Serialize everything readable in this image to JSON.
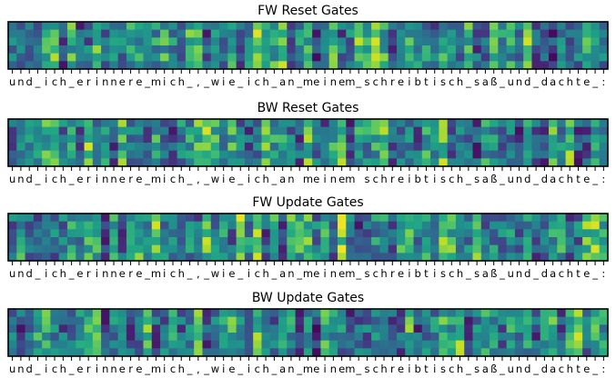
{
  "chart_data": [
    {
      "type": "heatmap",
      "title": "FW Reset Gates",
      "x_tick_labels": [
        "u",
        "n",
        "d",
        "_",
        "i",
        "c",
        "h",
        "_",
        "e",
        "r",
        "i",
        "n",
        "n",
        "e",
        "r",
        "e",
        "_",
        "m",
        "i",
        "c",
        "h",
        "_",
        ",",
        "_",
        "w",
        "i",
        "e",
        "_",
        "i",
        "c",
        "h",
        "_",
        "a",
        "n",
        "_",
        "m",
        "e",
        "i",
        "n",
        "e",
        "m",
        "_",
        "s",
        "c",
        "h",
        "r",
        "e",
        "i",
        "b",
        "t",
        "i",
        "s",
        "c",
        "h",
        "_",
        "s",
        "a",
        "ß",
        "_",
        "u",
        "n",
        "d",
        "_",
        "d",
        "a",
        "c",
        "h",
        "t",
        "e",
        "_",
        ":"
      ],
      "n_rows": 6,
      "colormap": "viridis",
      "value_range": [
        0,
        1
      ],
      "seed": 11
    },
    {
      "type": "heatmap",
      "title": "BW Reset Gates",
      "x_tick_labels": [
        "u",
        "n",
        "d",
        "_",
        "i",
        "c",
        "h",
        "_",
        "e",
        "r",
        "i",
        "n",
        "n",
        "e",
        "r",
        "e",
        "_",
        "m",
        "i",
        "c",
        "h",
        "_",
        ",",
        "_",
        "w",
        "i",
        "e",
        "_",
        "i",
        "c",
        "h",
        "_",
        "a",
        "n",
        " ",
        "m",
        "e",
        "i",
        "n",
        "e",
        "m",
        " ",
        "s",
        "c",
        "h",
        "r",
        "e",
        "i",
        "b",
        "t",
        "i",
        "s",
        "c",
        "h",
        "_",
        "s",
        "a",
        "ß",
        "_",
        "u",
        "n",
        "d",
        "_",
        "d",
        "a",
        "c",
        "h",
        "t",
        "e",
        "_",
        ":"
      ],
      "n_rows": 6,
      "colormap": "viridis",
      "value_range": [
        0,
        1
      ],
      "seed": 23
    },
    {
      "type": "heatmap",
      "title": "FW Update Gates",
      "x_tick_labels": [
        "u",
        "n",
        "d",
        "_",
        "i",
        "c",
        "h",
        "_",
        "e",
        "r",
        "i",
        "n",
        "n",
        "e",
        "r",
        "e",
        "_",
        "m",
        "i",
        "c",
        "h",
        "_",
        ",",
        "_",
        "w",
        "i",
        "e",
        "_",
        "i",
        "c",
        "h",
        "_",
        "a",
        "n",
        "_",
        "m",
        "e",
        "i",
        "n",
        "e",
        "m",
        "_",
        "s",
        "c",
        "h",
        "r",
        "e",
        "i",
        "b",
        "t",
        "i",
        "s",
        "c",
        "h",
        "_",
        "s",
        "a",
        "ß",
        "_",
        "u",
        "n",
        "d",
        "_",
        "d",
        "a",
        "c",
        "h",
        "t",
        "e",
        "_",
        ":"
      ],
      "n_rows": 6,
      "colormap": "viridis",
      "value_range": [
        0,
        1
      ],
      "seed": 37
    },
    {
      "type": "heatmap",
      "title": "BW Update Gates",
      "x_tick_labels": [
        "u",
        "n",
        "d",
        "_",
        "i",
        "c",
        "h",
        "_",
        "e",
        "r",
        "i",
        "n",
        "n",
        "e",
        "r",
        "e",
        "_",
        "m",
        "i",
        "c",
        "h",
        "_",
        ",",
        "_",
        "w",
        "i",
        "e",
        "_",
        "i",
        "c",
        "h",
        "_",
        "a",
        "n",
        "_",
        "m",
        "e",
        "i",
        "n",
        "e",
        "m",
        "_",
        "s",
        "c",
        "h",
        "r",
        "e",
        "i",
        "b",
        "t",
        "i",
        "s",
        "c",
        "h",
        "_",
        "s",
        "a",
        "ß",
        "_",
        "u",
        "n",
        "d",
        "_",
        "d",
        "a",
        "c",
        "h",
        "t",
        "e",
        "_",
        ":"
      ],
      "n_rows": 6,
      "colormap": "viridis",
      "value_range": [
        0,
        1
      ],
      "seed": 53
    }
  ]
}
